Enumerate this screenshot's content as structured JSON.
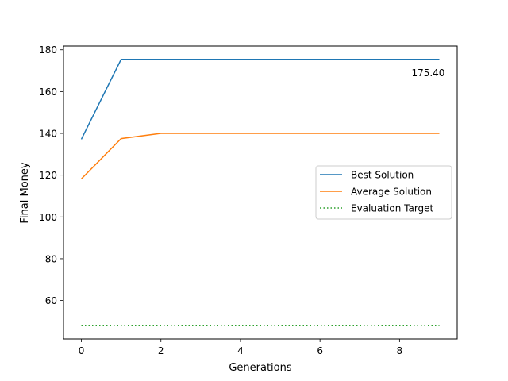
{
  "chart_data": {
    "type": "line",
    "title": "",
    "xlabel": "Generations",
    "ylabel": "Final Money",
    "xlim": [
      -0.45,
      9.45
    ],
    "ylim": [
      41.6,
      181.8
    ],
    "xticks": [
      0,
      2,
      4,
      6,
      8
    ],
    "yticks": [
      60,
      80,
      100,
      120,
      140,
      160,
      180
    ],
    "grid": false,
    "legend_position": "center-right",
    "x": [
      0,
      1,
      2,
      3,
      4,
      5,
      6,
      7,
      8,
      9
    ],
    "series": [
      {
        "name": "Best Solution",
        "color": "#1f77b4",
        "style": "solid",
        "values": [
          137.2,
          175.4,
          175.4,
          175.4,
          175.4,
          175.4,
          175.4,
          175.4,
          175.4,
          175.4
        ]
      },
      {
        "name": "Average Solution",
        "color": "#ff7f0e",
        "style": "solid",
        "values": [
          118.2,
          137.5,
          140.0,
          140.0,
          140.0,
          140.0,
          140.0,
          140.0,
          140.0,
          140.0
        ]
      },
      {
        "name": "Evaluation Target",
        "color": "#2ca02c",
        "style": "dotted",
        "values": [
          48.0,
          48.0,
          48.0,
          48.0,
          48.0,
          48.0,
          48.0,
          48.0,
          48.0,
          48.0
        ]
      }
    ],
    "annotations": [
      {
        "text": "175.40",
        "x": 9,
        "y": 175.4
      }
    ]
  }
}
